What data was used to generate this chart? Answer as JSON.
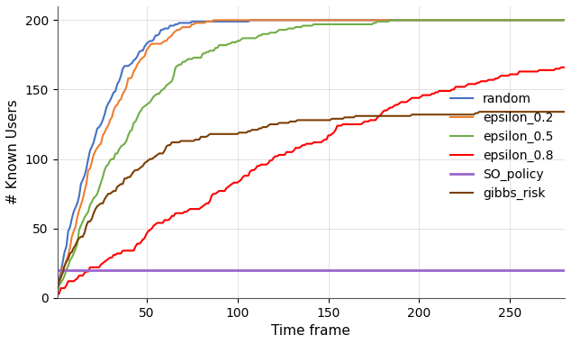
{
  "title": "",
  "xlabel": "Time frame",
  "ylabel": "# Known Users",
  "xlim": [
    1,
    280
  ],
  "ylim": [
    0,
    210
  ],
  "yticks": [
    0,
    50,
    100,
    150,
    200
  ],
  "xticks": [
    50,
    100,
    150,
    200,
    250
  ],
  "grid": true,
  "series": [
    {
      "label": "random",
      "color": "#4472C4",
      "lw": 1.5
    },
    {
      "label": "epsilon_0.2",
      "color": "#ED7D31",
      "lw": 1.5
    },
    {
      "label": "epsilon_0.5",
      "color": "#70AD47",
      "lw": 1.5
    },
    {
      "label": "epsilon_0.8",
      "color": "#FF0000",
      "lw": 1.5
    },
    {
      "label": "SO_policy",
      "color": "#9966CC",
      "lw": 2.0
    },
    {
      "label": "gibbs_risk",
      "color": "#7B3F00",
      "lw": 1.5
    }
  ],
  "max_users": 200,
  "so_value": 20,
  "background_color": "#ffffff",
  "legend_fontsize": 10,
  "axis_fontsize": 11,
  "tick_fontsize": 10
}
